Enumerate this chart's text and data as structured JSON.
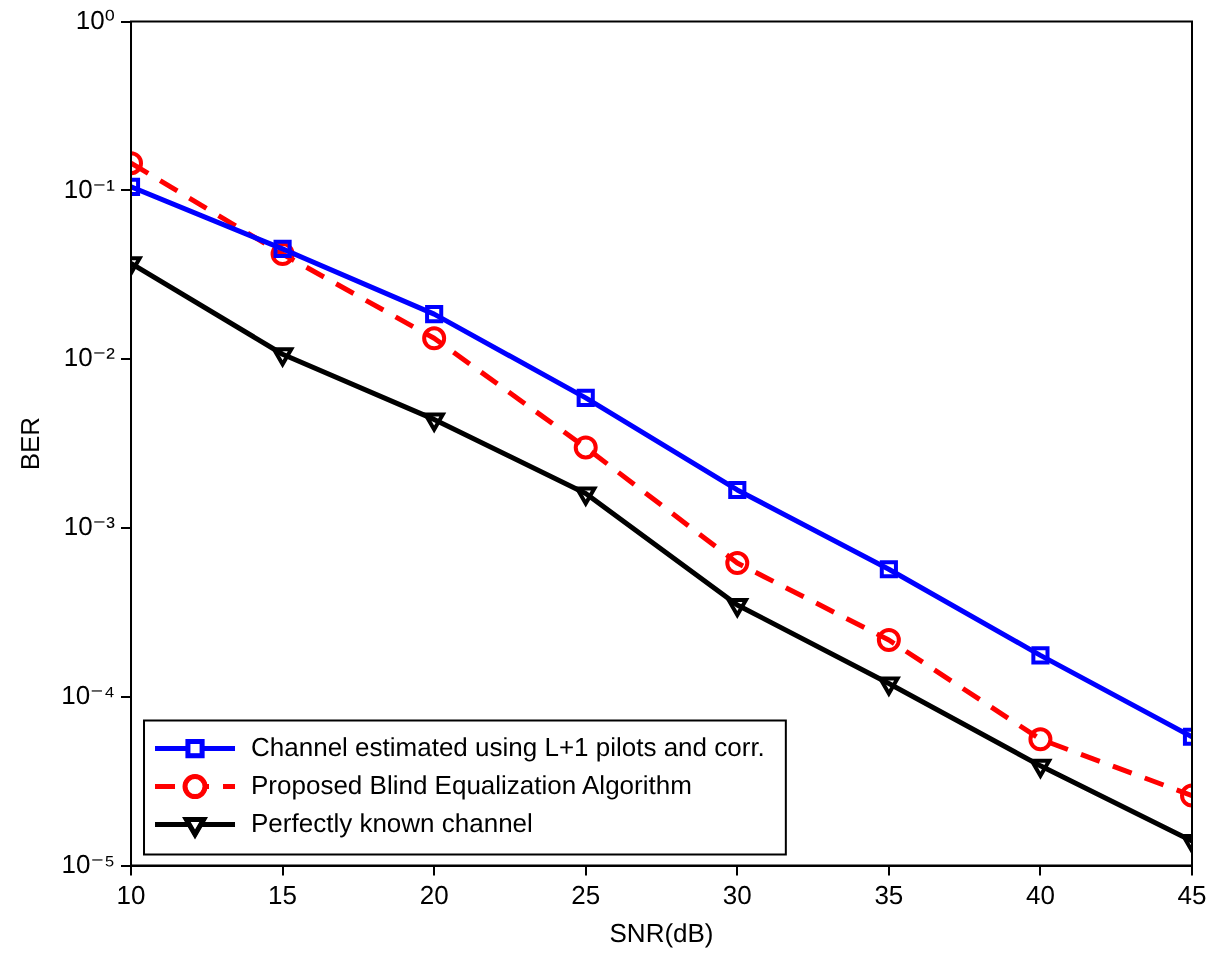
{
  "chart_data": {
    "type": "line",
    "xlabel": "SNR(dB)",
    "ylabel": "BER",
    "log": "y",
    "grid": false,
    "legend": "bottom left",
    "x": [
      10,
      15,
      20,
      25,
      30,
      35,
      40,
      45
    ],
    "xlim": [
      10,
      45
    ],
    "xticks": [
      10,
      15,
      20,
      25,
      30,
      35,
      40,
      45
    ],
    "ylim": [
      1e-05,
      1
    ],
    "yticks": [
      {
        "value": 1e-05,
        "label": "10⁻⁵"
      },
      {
        "value": 0.0001,
        "label": "10⁻⁴"
      },
      {
        "value": 0.001,
        "label": "10⁻³"
      },
      {
        "value": 0.01,
        "label": "10⁻²"
      },
      {
        "value": 0.1,
        "label": "10⁻¹"
      },
      {
        "value": 1,
        "label": "10⁰"
      }
    ],
    "series": [
      {
        "name": "Channel estimated using L+1 pilots and corr.",
        "color": "#0000ff",
        "marker": "square",
        "line_style": "solid",
        "values": [
          0.105,
          0.045,
          0.0185,
          0.0059,
          0.00168,
          0.00057,
          0.000176,
          5.8e-05
        ]
      },
      {
        "name": "Proposed Blind Equalization Algorithm",
        "color": "#ff0000",
        "marker": "circle",
        "line_style": "dashed",
        "values": [
          0.145,
          0.042,
          0.0133,
          0.003,
          0.00062,
          0.000217,
          5.6e-05,
          2.6e-05
        ]
      },
      {
        "name": "Perfectly known channel",
        "color": "#000000",
        "marker": "triangle-down",
        "line_style": "solid",
        "values": [
          0.037,
          0.0107,
          0.0044,
          0.0016,
          0.00035,
          0.00012,
          3.9e-05,
          1.4e-05
        ]
      }
    ]
  }
}
